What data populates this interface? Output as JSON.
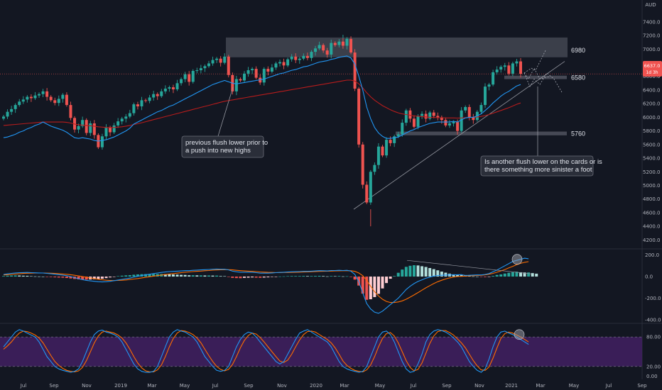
{
  "currency": "AUD",
  "price_badge": {
    "value": "6637.0",
    "countdown": "1d 3h",
    "color": "#f05350"
  },
  "colors": {
    "bg": "#131722",
    "up": "#26a69a",
    "down": "#ef5350",
    "ema_fast": "#2196f3",
    "ema_slow": "#b71c1c",
    "zone": "#5d606b",
    "stoch_band": "#3f1f5e",
    "macd_line": "#2196f3",
    "signal_line": "#ff6d00",
    "hist_up_strong": "#26a69a",
    "hist_up_weak": "#b2dfdb",
    "hist_down_strong": "#ef5350",
    "hist_down_weak": "#ffcdd2"
  },
  "chart_data": [
    {
      "type": "candlestick",
      "title": "",
      "ylim": [
        4100,
        7450
      ],
      "y_ticks": [
        "7400.0",
        "7200.0",
        "7000.0",
        "6800.0",
        "6600.0",
        "6400.0",
        "6200.0",
        "6000.0",
        "5800.0",
        "5600.0",
        "5400.0",
        "5200.0",
        "5000.0",
        "4800.0",
        "4600.0",
        "4400.0",
        "4200.0"
      ],
      "x_ticks": [
        "Jul",
        "Sep",
        "Nov",
        "2019",
        "Mar",
        "May",
        "Jul",
        "Sep",
        "Nov",
        "2020",
        "Mar",
        "May",
        "Jul",
        "Sep",
        "Nov",
        "2021",
        "Mar",
        "May",
        "Jul",
        "Sep"
      ],
      "weekly_closes": [
        6010,
        6080,
        6120,
        6180,
        6230,
        6260,
        6300,
        6280,
        6320,
        6340,
        6380,
        6300,
        6250,
        6210,
        6270,
        6330,
        6180,
        5990,
        5820,
        5870,
        5960,
        5770,
        5910,
        5740,
        5560,
        5720,
        5850,
        5780,
        5880,
        5940,
        5980,
        6010,
        6060,
        6190,
        6160,
        6250,
        6240,
        6290,
        6340,
        6310,
        6380,
        6420,
        6440,
        6410,
        6500,
        6560,
        6630,
        6520,
        6680,
        6690,
        6720,
        6750,
        6790,
        6840,
        6860,
        6800,
        6890,
        6620,
        6380,
        6560,
        6540,
        6640,
        6690,
        6710,
        6580,
        6510,
        6710,
        6670,
        6730,
        6790,
        6810,
        6760,
        6850,
        6890,
        6840,
        6860,
        6900,
        6870,
        6960,
        7010,
        7060,
        6980,
        6920,
        7090,
        7060,
        7110,
        7050,
        7150,
        6950,
        6420,
        5600,
        5010,
        4750,
        5200,
        5300,
        5570,
        5440,
        5670,
        5620,
        5720,
        5750,
        5920,
        6100,
        5980,
        5860,
        6020,
        6050,
        5980,
        6070,
        6020,
        6000,
        5960,
        5880,
        5910,
        5930,
        5800,
        6100,
        6150,
        6000,
        5960,
        6080,
        6180,
        6450,
        6480,
        6660,
        6700,
        6740,
        6760,
        6640,
        6790,
        6820,
        6637
      ],
      "ema_fast_series": [
        5700,
        5710,
        5730,
        5750,
        5780,
        5800,
        5830,
        5850,
        5880,
        5900,
        5930,
        5900,
        5870,
        5850,
        5830,
        5810,
        5780,
        5740,
        5700,
        5690,
        5700,
        5690,
        5680,
        5660,
        5650,
        5660,
        5670,
        5690,
        5710,
        5740,
        5770,
        5800,
        5840,
        5900,
        5930,
        5960,
        5990,
        6020,
        6050,
        6080,
        6100,
        6130,
        6160,
        6180,
        6210,
        6240,
        6270,
        6300,
        6330,
        6360,
        6390,
        6420,
        6450,
        6480,
        6500,
        6520,
        6540,
        6520,
        6500,
        6490,
        6500,
        6510,
        6520,
        6530,
        6540,
        6550,
        6560,
        6580,
        6600,
        6620,
        6640,
        6650,
        6670,
        6690,
        6700,
        6720,
        6740,
        6750,
        6770,
        6790,
        6810,
        6820,
        6830,
        6850,
        6860,
        6880,
        6890,
        6900,
        6870,
        6780,
        6600,
        6400,
        6150,
        5980,
        5850,
        5770,
        5720,
        5690,
        5690,
        5700,
        5710,
        5740,
        5770,
        5800,
        5820,
        5850,
        5870,
        5890,
        5910,
        5920,
        5930,
        5930,
        5930,
        5930,
        5940,
        5930,
        5960,
        5990,
        6000,
        6000,
        6020,
        6050,
        6100,
        6150,
        6210,
        6260,
        6310,
        6350,
        6380,
        6420,
        6460,
        6480
      ],
      "ema_slow_series": [
        5880,
        5885,
        5890,
        5895,
        5900,
        5905,
        5910,
        5915,
        5920,
        5925,
        5930,
        5930,
        5930,
        5930,
        5930,
        5930,
        5925,
        5915,
        5900,
        5890,
        5885,
        5880,
        5875,
        5870,
        5860,
        5855,
        5850,
        5850,
        5850,
        5855,
        5860,
        5870,
        5880,
        5895,
        5905,
        5920,
        5935,
        5950,
        5965,
        5980,
        5995,
        6010,
        6025,
        6040,
        6055,
        6070,
        6085,
        6100,
        6115,
        6130,
        6145,
        6160,
        6175,
        6190,
        6205,
        6220,
        6235,
        6245,
        6255,
        6265,
        6275,
        6285,
        6295,
        6305,
        6315,
        6325,
        6335,
        6345,
        6355,
        6365,
        6375,
        6385,
        6395,
        6405,
        6415,
        6425,
        6435,
        6445,
        6455,
        6465,
        6475,
        6485,
        6495,
        6505,
        6515,
        6525,
        6535,
        6545,
        6545,
        6530,
        6490,
        6430,
        6360,
        6300,
        6250,
        6210,
        6170,
        6140,
        6110,
        6085,
        6065,
        6050,
        6040,
        6030,
        6020,
        6015,
        6010,
        6005,
        6000,
        5998,
        5995,
        5993,
        5990,
        5990,
        5990,
        5988,
        5990,
        5995,
        5998,
        6000,
        6005,
        6012,
        6025,
        6040,
        6060,
        6080,
        6100,
        6120,
        6140,
        6165,
        6190,
        6210
      ],
      "levels": [
        {
          "label": "6980",
          "price": 6980
        },
        {
          "label": "6580",
          "price": 6580
        },
        {
          "label": "5760",
          "price": 5760
        }
      ],
      "annotations": [
        {
          "lines": [
            "previous flush lower prior to",
            "a push into new highs"
          ]
        },
        {
          "lines": [
            "Is another flush lower on the cards or is",
            "there something more sinister a foot"
          ]
        }
      ]
    },
    {
      "type": "macd",
      "ylim": [
        -420,
        230
      ],
      "y_ticks": [
        "200.0",
        "0.0",
        "-200.0",
        "-400.0"
      ],
      "macd_line": [
        20,
        25,
        30,
        34,
        36,
        37,
        38,
        36,
        35,
        34,
        33,
        30,
        26,
        22,
        18,
        14,
        8,
        0,
        -10,
        -20,
        -28,
        -35,
        -40,
        -44,
        -48,
        -50,
        -48,
        -44,
        -38,
        -32,
        -26,
        -20,
        -14,
        -6,
        2,
        10,
        16,
        22,
        28,
        33,
        38,
        42,
        46,
        48,
        50,
        52,
        55,
        55,
        58,
        60,
        62,
        64,
        66,
        68,
        70,
        68,
        68,
        62,
        50,
        44,
        40,
        40,
        40,
        40,
        36,
        32,
        32,
        32,
        34,
        36,
        38,
        40,
        42,
        44,
        45,
        46,
        48,
        48,
        50,
        52,
        55,
        54,
        52,
        56,
        56,
        58,
        56,
        58,
        50,
        20,
        -50,
        -150,
        -250,
        -300,
        -330,
        -340,
        -320,
        -290,
        -260,
        -230,
        -200,
        -160,
        -120,
        -90,
        -65,
        -45,
        -30,
        -15,
        -5,
        5,
        10,
        12,
        14,
        15,
        16,
        17,
        18,
        10,
        12,
        14,
        15,
        15,
        20,
        28,
        45,
        60,
        80,
        100,
        120,
        140,
        150,
        160,
        170,
        165
      ],
      "signal_line": [
        15,
        17,
        20,
        23,
        26,
        29,
        31,
        32,
        33,
        33,
        33,
        32,
        31,
        29,
        27,
        24,
        21,
        17,
        12,
        6,
        0,
        -7,
        -13,
        -19,
        -25,
        -30,
        -34,
        -36,
        -37,
        -36,
        -34,
        -31,
        -27,
        -23,
        -18,
        -12,
        -7,
        -2,
        4,
        9,
        14,
        19,
        24,
        28,
        32,
        36,
        40,
        43,
        46,
        49,
        51,
        54,
        56,
        59,
        61,
        63,
        64,
        64,
        62,
        58,
        55,
        52,
        50,
        48,
        46,
        43,
        41,
        39,
        38,
        37,
        37,
        38,
        38,
        39,
        40,
        41,
        42,
        43,
        45,
        46,
        48,
        49,
        50,
        51,
        52,
        53,
        54,
        55,
        54,
        48,
        33,
        8,
        -35,
        -90,
        -140,
        -180,
        -210,
        -230,
        -240,
        -240,
        -235,
        -225,
        -210,
        -190,
        -170,
        -148,
        -126,
        -104,
        -84,
        -65,
        -48,
        -34,
        -22,
        -12,
        -5,
        0,
        2,
        5,
        7,
        9,
        10,
        12,
        16,
        22,
        30,
        40,
        52,
        65,
        80,
        95,
        110,
        122,
        132,
        138
      ],
      "histogram": [
        5,
        8,
        10,
        11,
        10,
        8,
        7,
        4,
        2,
        1,
        0,
        -2,
        -5,
        -7,
        -9,
        -10,
        -13,
        -17,
        -22,
        -26,
        -28,
        -28,
        -27,
        -25,
        -23,
        -20,
        -14,
        -8,
        -1,
        4,
        8,
        11,
        13,
        17,
        20,
        22,
        23,
        24,
        24,
        24,
        24,
        23,
        22,
        20,
        18,
        16,
        15,
        12,
        12,
        11,
        11,
        10,
        10,
        9,
        9,
        5,
        4,
        -2,
        -12,
        -14,
        -15,
        -12,
        -10,
        -8,
        -10,
        -11,
        -9,
        -7,
        -4,
        -1,
        1,
        2,
        4,
        5,
        5,
        5,
        6,
        5,
        5,
        6,
        7,
        5,
        2,
        5,
        4,
        5,
        2,
        3,
        -4,
        -28,
        -83,
        -158,
        -215,
        -210,
        -190,
        -160,
        -110,
        -60,
        -20,
        5,
        35,
        65,
        90,
        100,
        105,
        103,
        96,
        89,
        79,
        69,
        58,
        46,
        36,
        27,
        21,
        17,
        15,
        14,
        6,
        2,
        0,
        -2,
        -5,
        -2,
        6,
        15,
        20,
        28,
        35,
        40,
        45,
        40,
        38,
        38,
        32,
        27
      ]
    },
    {
      "type": "stochastic",
      "ylim": [
        -2,
        102
      ],
      "y_ticks": [
        "80.00",
        "20.00",
        "0.00"
      ],
      "upper_band": 80,
      "lower_band": 20,
      "k_line": [
        60,
        70,
        80,
        90,
        95,
        92,
        88,
        84,
        80,
        70,
        55,
        40,
        30,
        20,
        15,
        12,
        10,
        8,
        10,
        15,
        30,
        50,
        70,
        85,
        92,
        94,
        90,
        88,
        85,
        80,
        70,
        55,
        40,
        25,
        15,
        10,
        8,
        8,
        10,
        20,
        40,
        60,
        80,
        90,
        95,
        92,
        90,
        85,
        80,
        70,
        55,
        40,
        30,
        20,
        12,
        10,
        12,
        20,
        40,
        60,
        75,
        85,
        90,
        88,
        80,
        70,
        60,
        50,
        40,
        30,
        25,
        30,
        45,
        60,
        75,
        88,
        92,
        95,
        90,
        85,
        80,
        75,
        70,
        60,
        45,
        30,
        20,
        15,
        12,
        10,
        8,
        10,
        20,
        40,
        60,
        80,
        90,
        92,
        85,
        70,
        50,
        30,
        15,
        8,
        10,
        25,
        45,
        70,
        85,
        92,
        95,
        93,
        90,
        85,
        78,
        70,
        60,
        45,
        30,
        20,
        12,
        8,
        15,
        35,
        60,
        80,
        90,
        92,
        88,
        85,
        80,
        75,
        70,
        65
      ],
      "d_line": [
        55,
        62,
        70,
        80,
        88,
        92,
        91,
        88,
        84,
        78,
        68,
        55,
        42,
        30,
        22,
        16,
        12,
        10,
        9,
        11,
        18,
        32,
        50,
        68,
        82,
        90,
        92,
        90,
        88,
        84,
        78,
        68,
        55,
        40,
        27,
        17,
        11,
        9,
        9,
        13,
        23,
        40,
        60,
        77,
        88,
        93,
        92,
        89,
        85,
        78,
        68,
        55,
        42,
        30,
        20,
        14,
        11,
        14,
        24,
        40,
        58,
        73,
        83,
        88,
        86,
        79,
        70,
        60,
        50,
        40,
        31,
        28,
        33,
        45,
        60,
        74,
        85,
        91,
        92,
        90,
        85,
        80,
        75,
        68,
        58,
        45,
        31,
        22,
        16,
        12,
        10,
        9,
        13,
        23,
        40,
        60,
        77,
        87,
        89,
        82,
        68,
        50,
        32,
        18,
        11,
        14,
        27,
        47,
        67,
        82,
        91,
        93,
        93,
        89,
        84,
        76,
        68,
        58,
        45,
        32,
        21,
        13,
        12,
        19,
        37,
        58,
        77,
        87,
        90,
        88,
        84,
        80,
        75,
        70
      ]
    }
  ]
}
